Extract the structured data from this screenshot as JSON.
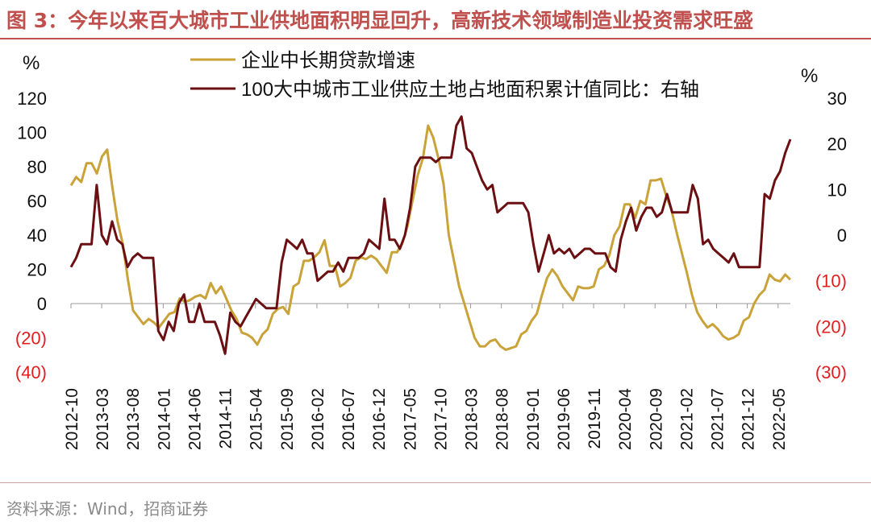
{
  "title": "图 3：今年以来百大城市工业供地面积明显回升，高新技术领域制造业投资需求旺盛",
  "source": "资料来源：Wind，招商证券",
  "colors": {
    "title": "#c0504d",
    "series1": "#c9a33a",
    "series2": "#6b0f12",
    "negative_labels": "#e02020"
  },
  "chart_data": {
    "type": "line",
    "left_axis": {
      "unit": "%",
      "ylim": [
        -40,
        120
      ],
      "ticks": [
        {
          "v": 120,
          "label": "120",
          "neg": false
        },
        {
          "v": 100,
          "label": "100",
          "neg": false
        },
        {
          "v": 80,
          "label": "80",
          "neg": false
        },
        {
          "v": 60,
          "label": "60",
          "neg": false
        },
        {
          "v": 40,
          "label": "40",
          "neg": false
        },
        {
          "v": 20,
          "label": "20",
          "neg": false
        },
        {
          "v": 0,
          "label": "0",
          "neg": false
        },
        {
          "v": -20,
          "label": "(20)",
          "neg": true
        },
        {
          "v": -40,
          "label": "(40)",
          "neg": true
        }
      ]
    },
    "right_axis": {
      "unit": "%",
      "ylim": [
        -30,
        30
      ],
      "ticks": [
        {
          "v": 30,
          "label": "30",
          "neg": false
        },
        {
          "v": 20,
          "label": "20",
          "neg": false
        },
        {
          "v": 10,
          "label": "10",
          "neg": false
        },
        {
          "v": 0,
          "label": "0",
          "neg": false
        },
        {
          "v": -10,
          "label": "(10)",
          "neg": true
        },
        {
          "v": -20,
          "label": "(20)",
          "neg": true
        },
        {
          "v": -30,
          "label": "(30)",
          "neg": true
        }
      ]
    },
    "x_tick_labels": [
      "2012-10",
      "2013-03",
      "2013-08",
      "2014-01",
      "2014-06",
      "2014-11",
      "2015-04",
      "2015-09",
      "2016-02",
      "2016-07",
      "2016-12",
      "2017-05",
      "2017-10",
      "2018-03",
      "2018-08",
      "2019-01",
      "2019-06",
      "2019-11",
      "2020-04",
      "2020-09",
      "2021-02",
      "2021-07",
      "2021-12",
      "2022-05"
    ],
    "x_start": "2012-10",
    "x_end": "2022-07",
    "legend_placement": "top",
    "series": [
      {
        "name": "企业中长期贷款增速",
        "axis": "left",
        "values": [
          69,
          74,
          71,
          82,
          82,
          76,
          86,
          90,
          68,
          48,
          35,
          14,
          -4,
          -8,
          -12,
          -9,
          -11,
          -14,
          -10,
          -6,
          -5,
          3,
          1,
          2,
          4,
          5,
          3,
          12,
          6,
          10,
          3,
          -4,
          -9,
          -17,
          -18,
          -20,
          -24,
          -18,
          -15,
          -6,
          -3,
          -2,
          -6,
          10,
          12,
          25,
          25,
          27,
          30,
          37,
          22,
          22,
          10,
          12,
          15,
          25,
          27,
          26,
          28,
          26,
          22,
          18,
          30,
          30,
          35,
          45,
          60,
          75,
          85,
          104,
          97,
          85,
          70,
          40,
          25,
          10,
          0,
          -10,
          -20,
          -25,
          -25,
          -22,
          -21,
          -25,
          -27,
          -26,
          -25,
          -18,
          -16,
          -10,
          -6,
          5,
          15,
          20,
          16,
          10,
          6,
          2,
          10,
          9,
          9,
          10,
          20,
          22,
          28,
          40,
          45,
          58,
          58,
          50,
          60,
          58,
          72,
          72,
          73,
          63,
          55,
          42,
          30,
          18,
          5,
          -5,
          -10,
          -14,
          -12,
          -15,
          -19,
          -21,
          -20,
          -18,
          -10,
          -8,
          0,
          5,
          8,
          17,
          14,
          13,
          17,
          14
        ]
      },
      {
        "name": "100大中城市工业供应土地占地面积累计值同比：右轴",
        "axis": "right",
        "values": [
          -7,
          -5,
          -2,
          -2,
          -2,
          11,
          0,
          -2,
          3,
          -1,
          -2,
          -7,
          -5,
          -4,
          -5,
          -5,
          -5,
          -21,
          -23,
          -19,
          -21,
          -15,
          -13,
          -19,
          -19,
          -15,
          -19,
          -19,
          -19,
          -22,
          -26,
          -17,
          -19,
          -20,
          -18,
          -16,
          -14,
          -15,
          -16,
          -16,
          -16,
          -6,
          -1,
          -2,
          -3,
          -1,
          -4,
          -4,
          -10,
          -9,
          -8,
          -8,
          -6,
          -8,
          -5,
          -5,
          -5,
          -4,
          -1,
          -2,
          -3,
          8,
          -1,
          -1,
          -3,
          0,
          6,
          15,
          17,
          17,
          17,
          16,
          17,
          17,
          17,
          24,
          26,
          19,
          18,
          15,
          12,
          10,
          11,
          5,
          6,
          7,
          7,
          7,
          7,
          5,
          -2,
          -8,
          -4,
          0,
          -4,
          -3,
          -4,
          -3,
          -5,
          -4,
          -3,
          -3,
          -4,
          -4,
          -4,
          -7,
          -8,
          -1,
          3,
          6,
          1,
          4,
          6,
          6,
          4,
          5,
          9,
          5,
          5,
          5,
          5,
          11,
          8,
          -2,
          -1,
          -3,
          -4,
          -5,
          -6,
          -4,
          -7,
          -7,
          -7,
          -7,
          -7,
          9,
          8,
          12,
          14,
          18,
          21
        ]
      }
    ]
  }
}
